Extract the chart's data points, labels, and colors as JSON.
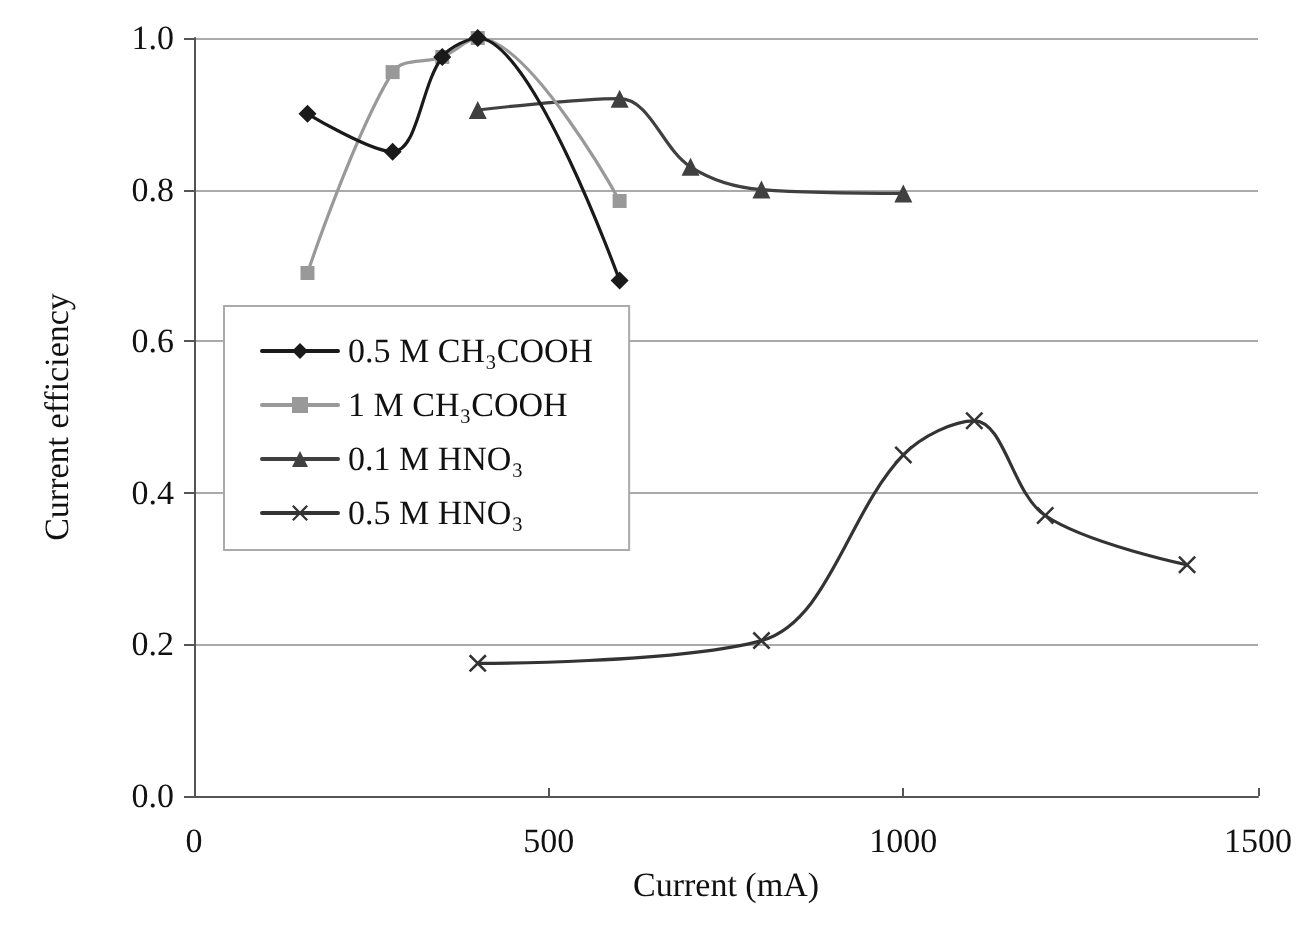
{
  "chart_data": {
    "type": "line",
    "xlabel": "Current (mA)",
    "ylabel": "Current efficiency",
    "xlim": [
      0,
      1500
    ],
    "xticks": [
      0,
      500,
      1000,
      1500
    ],
    "ylim": [
      0,
      1
    ],
    "yticks": [
      {
        "value": 0,
        "label": "0.0"
      },
      {
        "value": 0.2,
        "label": "0.2"
      },
      {
        "value": 0.4,
        "label": "0.4"
      },
      {
        "value": 0.6,
        "label": "0.6"
      },
      {
        "value": 0.8,
        "label": "0.8"
      },
      {
        "value": 1,
        "label": "1.0"
      }
    ],
    "grid": "y",
    "legend": "left",
    "series": [
      {
        "name": "0.5 M CH₃COOH",
        "color": "#1a1a1a",
        "marker": "diamond",
        "x": [
          160,
          280,
          350,
          400,
          600
        ],
        "values": [
          0.9,
          0.85,
          0.975,
          1.0,
          0.68
        ]
      },
      {
        "name": "1 M CH₃COOH",
        "color": "#999999",
        "marker": "square",
        "x": [
          160,
          280,
          350,
          400,
          600
        ],
        "values": [
          0.69,
          0.955,
          0.975,
          1.0,
          0.785
        ]
      },
      {
        "name": "0.1 M HNO₃",
        "color": "#404040",
        "marker": "triangle",
        "x": [
          400,
          600,
          700,
          800,
          1000
        ],
        "values": [
          0.905,
          0.92,
          0.83,
          0.8,
          0.795
        ]
      },
      {
        "name": "0.5 M HNO₃",
        "color": "#333333",
        "marker": "cross",
        "x": [
          400,
          800,
          1000,
          1100,
          1200,
          1400
        ],
        "values": [
          0.175,
          0.205,
          0.45,
          0.495,
          0.37,
          0.305
        ]
      }
    ]
  }
}
